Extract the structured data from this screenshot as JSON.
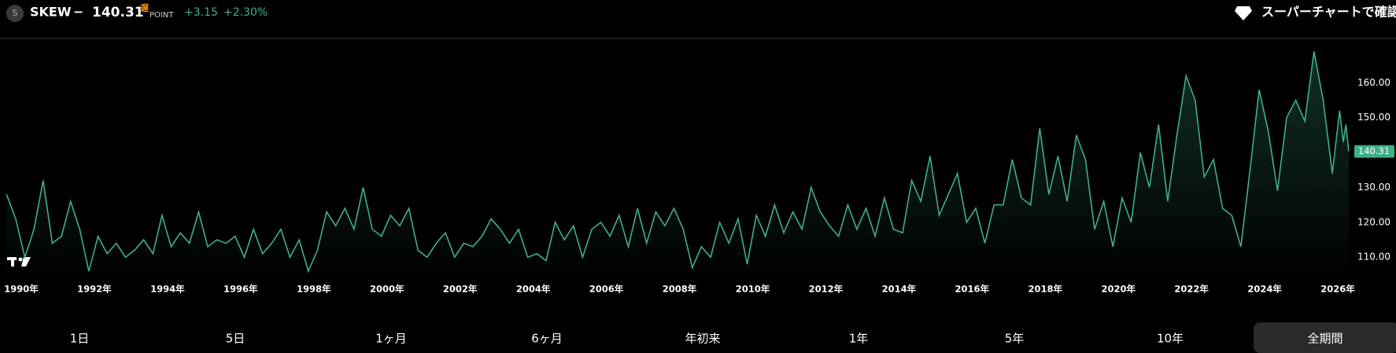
{
  "header": {
    "icon": "S",
    "separator": "−",
    "price": "140.31",
    "delay": "遅",
    "unit": "POINT",
    "change": "+3.15",
    "change_pct": "+2.30%",
    "link": "スーパーチャートで確認"
  },
  "chart_data": {
    "type": "area",
    "title": "SKEW",
    "color": "#3fae8c",
    "grid": false,
    "x": [
      1989.6,
      1989.85,
      1990.1,
      1990.35,
      1990.6,
      1990.85,
      1991.1,
      1991.35,
      1991.6,
      1991.85,
      1992.1,
      1992.35,
      1992.6,
      1992.85,
      1993.1,
      1993.35,
      1993.6,
      1993.85,
      1994.1,
      1994.35,
      1994.6,
      1994.85,
      1995.1,
      1995.35,
      1995.6,
      1995.85,
      1996.1,
      1996.35,
      1996.6,
      1996.85,
      1997.1,
      1997.35,
      1997.6,
      1997.85,
      1998.1,
      1998.35,
      1998.6,
      1998.85,
      1999.1,
      1999.35,
      1999.6,
      1999.85,
      2000.1,
      2000.35,
      2000.6,
      2000.85,
      2001.1,
      2001.35,
      2001.6,
      2001.85,
      2002.1,
      2002.35,
      2002.6,
      2002.85,
      2003.1,
      2003.35,
      2003.6,
      2003.85,
      2004.1,
      2004.35,
      2004.6,
      2004.85,
      2005.1,
      2005.35,
      2005.6,
      2005.85,
      2006.1,
      2006.35,
      2006.6,
      2006.85,
      2007.1,
      2007.35,
      2007.6,
      2007.85,
      2008.1,
      2008.35,
      2008.6,
      2008.85,
      2009.1,
      2009.35,
      2009.6,
      2009.85,
      2010.1,
      2010.35,
      2010.6,
      2010.85,
      2011.1,
      2011.35,
      2011.6,
      2011.85,
      2012.1,
      2012.35,
      2012.6,
      2012.85,
      2013.1,
      2013.35,
      2013.6,
      2013.85,
      2014.1,
      2014.35,
      2014.6,
      2014.85,
      2015.1,
      2015.35,
      2015.6,
      2015.85,
      2016.1,
      2016.35,
      2016.6,
      2016.85,
      2017.1,
      2017.35,
      2017.6,
      2017.85,
      2018.1,
      2018.35,
      2018.6,
      2018.85,
      2019.1,
      2019.35,
      2019.6,
      2019.85,
      2020.1,
      2020.35,
      2020.6,
      2020.85,
      2021.1,
      2021.35,
      2021.6,
      2021.85,
      2022.1,
      2022.35,
      2022.6,
      2022.85,
      2023.1,
      2023.35,
      2023.6,
      2023.85,
      2024.1,
      2024.35,
      2024.6,
      2024.85,
      2025.1,
      2025.35,
      2025.6,
      2025.85,
      2025.95,
      2026.05,
      2026.15,
      2026.22,
      2026.3
    ],
    "values": [
      128,
      121,
      110,
      118,
      132,
      114,
      116,
      126,
      118,
      106,
      116,
      111,
      114,
      110,
      112,
      115,
      111,
      122,
      113,
      117,
      114,
      123,
      113,
      115,
      114,
      116,
      110,
      118,
      111,
      114,
      118,
      110,
      115,
      106,
      112,
      123,
      119,
      124,
      118,
      130,
      118,
      116,
      122,
      119,
      124,
      112,
      110,
      114,
      117,
      110,
      114,
      113,
      116,
      121,
      118,
      114,
      118,
      110,
      111,
      109,
      120,
      115,
      119,
      110,
      118,
      120,
      116,
      122,
      113,
      124,
      114,
      123,
      119,
      124,
      118,
      107,
      113,
      110,
      120,
      114,
      121,
      108,
      122,
      116,
      125,
      117,
      123,
      118,
      130,
      123,
      119,
      116,
      125,
      118,
      124,
      116,
      127,
      118,
      117,
      132,
      126,
      139,
      122,
      128,
      134,
      120,
      124,
      114,
      125,
      125,
      138,
      127,
      125,
      147,
      128,
      139,
      126,
      145,
      138,
      118,
      126,
      113,
      127,
      120,
      140,
      130,
      148,
      126,
      145,
      162,
      155,
      133,
      138,
      124,
      122,
      113,
      135,
      158,
      146,
      129,
      150,
      155,
      149,
      169,
      155,
      134,
      143,
      152,
      143,
      148,
      140.31
    ],
    "xlim": [
      1989.42,
      2026.3
    ],
    "ylim": [
      103.5,
      172
    ],
    "xticks": [
      {
        "value": 1990,
        "label": "1990年"
      },
      {
        "value": 1992,
        "label": "1992年"
      },
      {
        "value": 1994,
        "label": "1994年"
      },
      {
        "value": 1996,
        "label": "1996年"
      },
      {
        "value": 1998,
        "label": "1998年"
      },
      {
        "value": 2000,
        "label": "2000年"
      },
      {
        "value": 2002,
        "label": "2002年"
      },
      {
        "value": 2004,
        "label": "2004年"
      },
      {
        "value": 2006,
        "label": "2006年"
      },
      {
        "value": 2008,
        "label": "2008年"
      },
      {
        "value": 2010,
        "label": "2010年"
      },
      {
        "value": 2012,
        "label": "2012年"
      },
      {
        "value": 2014,
        "label": "2014年"
      },
      {
        "value": 2016,
        "label": "2016年"
      },
      {
        "value": 2018,
        "label": "2018年"
      },
      {
        "value": 2020,
        "label": "2020年"
      },
      {
        "value": 2022,
        "label": "2022年"
      },
      {
        "value": 2024,
        "label": "2024年"
      },
      {
        "value": 2026,
        "label": "2026年"
      }
    ],
    "yticks": [
      {
        "value": 110,
        "label": "110.00"
      },
      {
        "value": 120,
        "label": "120.00"
      },
      {
        "value": 130,
        "label": "130.00"
      },
      {
        "value": 140,
        "label": "140.00"
      },
      {
        "value": 150,
        "label": "150.00"
      },
      {
        "value": 160,
        "label": "160.00"
      }
    ]
  },
  "periods": {
    "items": [
      "1日",
      "5日",
      "1ヶ月",
      "6ヶ月",
      "年初来",
      "1年",
      "5年",
      "10年",
      "全期間"
    ],
    "selected": 8
  }
}
